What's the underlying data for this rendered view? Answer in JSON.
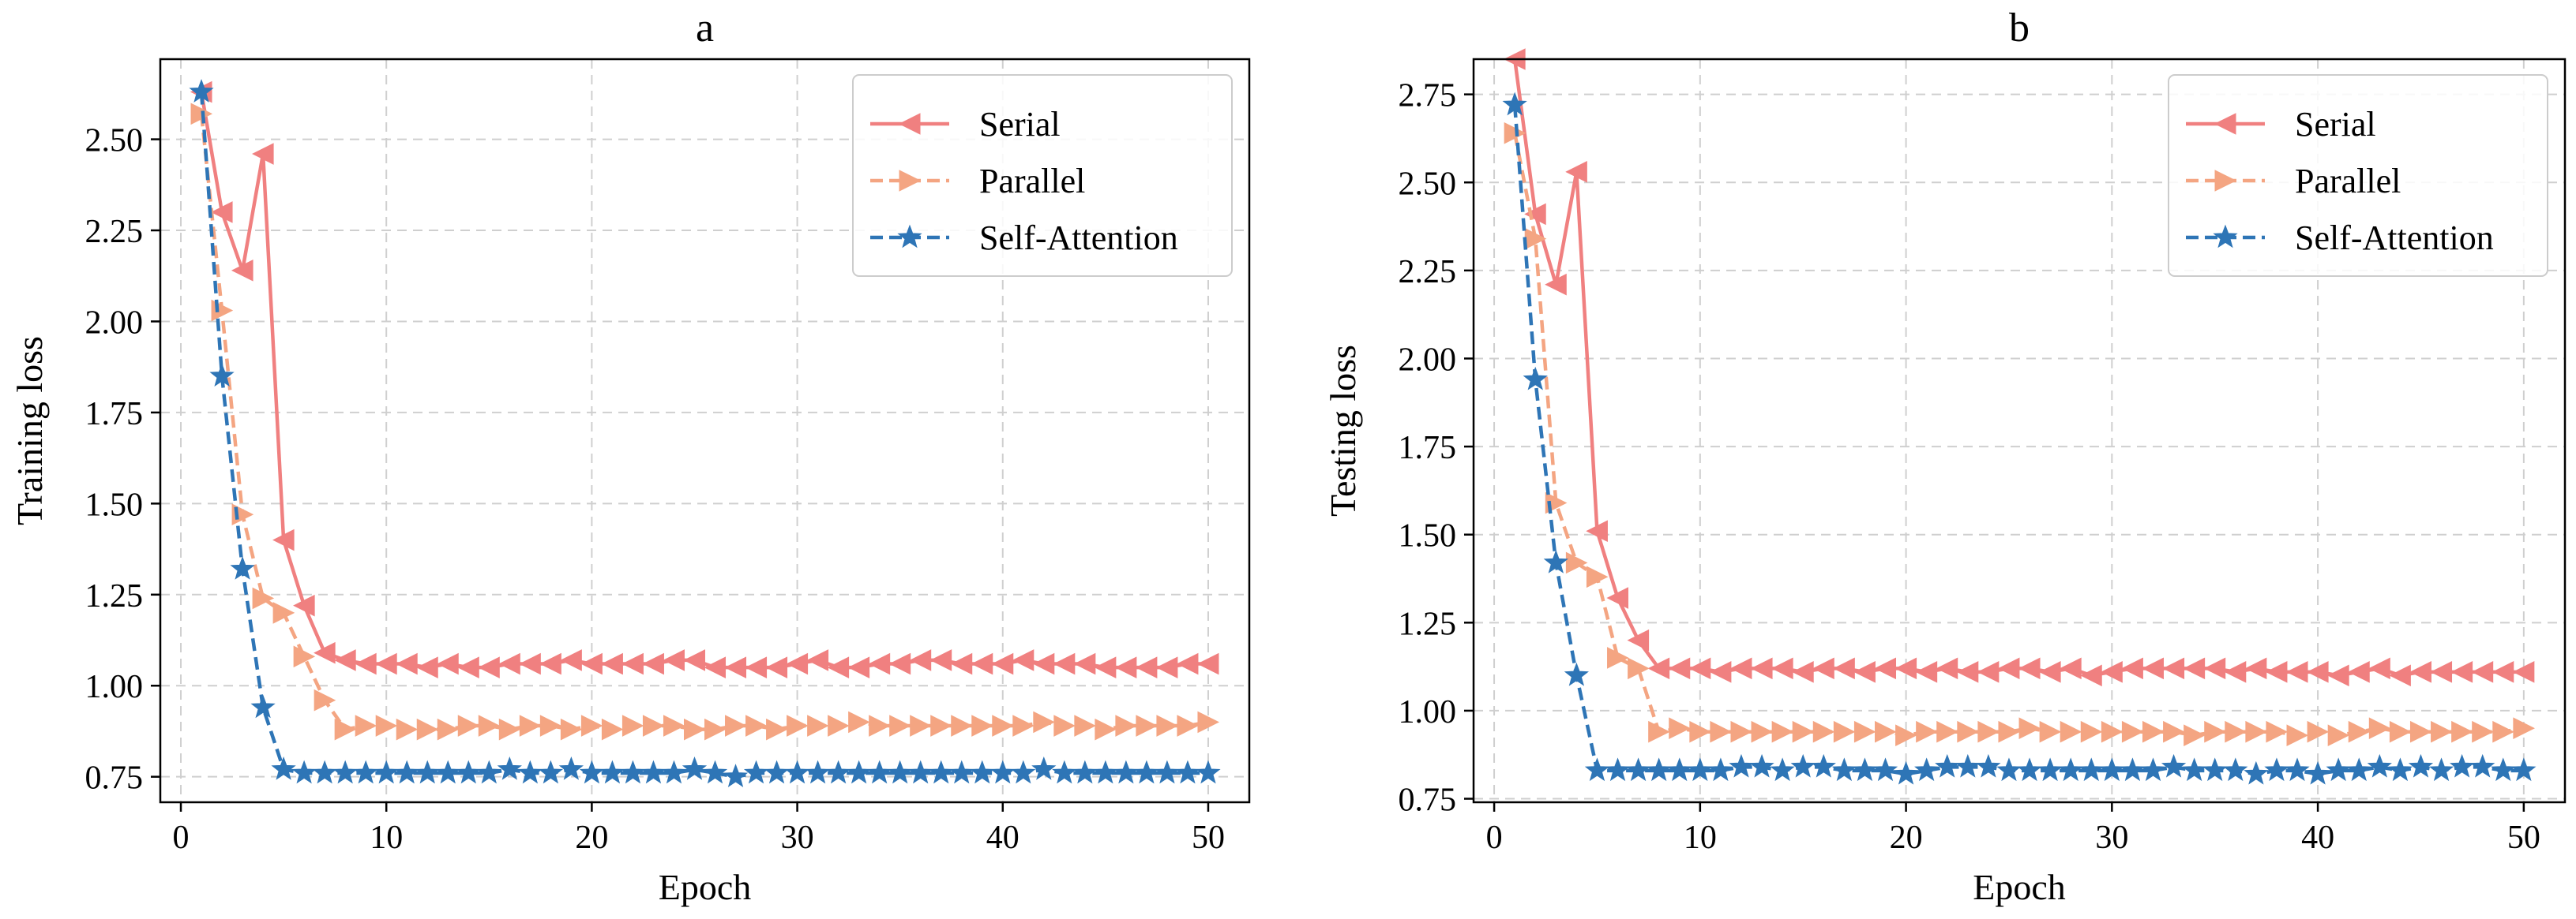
{
  "chart_data": [
    {
      "type": "line",
      "title": "a",
      "xlabel": "Epoch",
      "ylabel": "Training loss",
      "xlim": [
        -1,
        52
      ],
      "ylim": [
        0.68,
        2.72
      ],
      "xticks": [
        0,
        10,
        20,
        30,
        40,
        50
      ],
      "yticks": [
        0.75,
        1.0,
        1.25,
        1.5,
        1.75,
        2.0,
        2.25,
        2.5
      ],
      "grid": true,
      "legend_position": "top-right",
      "x": [
        1,
        2,
        3,
        4,
        5,
        6,
        7,
        8,
        9,
        10,
        11,
        12,
        13,
        14,
        15,
        16,
        17,
        18,
        19,
        20,
        21,
        22,
        23,
        24,
        25,
        26,
        27,
        28,
        29,
        30,
        31,
        32,
        33,
        34,
        35,
        36,
        37,
        38,
        39,
        40,
        41,
        42,
        43,
        44,
        45,
        46,
        47,
        48,
        49,
        50
      ],
      "series": [
        {
          "name": "Serial",
          "color": "#f08080",
          "marker": "triangle-left",
          "dash": "solid",
          "values": [
            2.63,
            2.3,
            2.14,
            2.46,
            1.4,
            1.22,
            1.09,
            1.07,
            1.06,
            1.06,
            1.06,
            1.05,
            1.06,
            1.05,
            1.05,
            1.06,
            1.06,
            1.06,
            1.07,
            1.06,
            1.06,
            1.06,
            1.06,
            1.07,
            1.07,
            1.05,
            1.05,
            1.05,
            1.05,
            1.06,
            1.07,
            1.05,
            1.05,
            1.06,
            1.06,
            1.07,
            1.07,
            1.06,
            1.06,
            1.06,
            1.07,
            1.06,
            1.06,
            1.06,
            1.05,
            1.05,
            1.05,
            1.05,
            1.06,
            1.06
          ]
        },
        {
          "name": "Parallel",
          "color": "#f4a582",
          "marker": "triangle-right",
          "dash": "dashed",
          "values": [
            2.57,
            2.03,
            1.47,
            1.24,
            1.2,
            1.08,
            0.96,
            0.88,
            0.89,
            0.89,
            0.88,
            0.88,
            0.88,
            0.89,
            0.89,
            0.88,
            0.89,
            0.89,
            0.88,
            0.89,
            0.88,
            0.89,
            0.89,
            0.89,
            0.88,
            0.88,
            0.89,
            0.89,
            0.88,
            0.89,
            0.89,
            0.89,
            0.9,
            0.89,
            0.89,
            0.89,
            0.89,
            0.89,
            0.89,
            0.89,
            0.89,
            0.9,
            0.89,
            0.89,
            0.88,
            0.89,
            0.89,
            0.89,
            0.89,
            0.9
          ]
        },
        {
          "name": "Self-Attention",
          "color": "#2e75b6",
          "marker": "star",
          "dash": "dashed",
          "values": [
            2.63,
            1.85,
            1.32,
            0.94,
            0.77,
            0.76,
            0.76,
            0.76,
            0.76,
            0.76,
            0.76,
            0.76,
            0.76,
            0.76,
            0.76,
            0.77,
            0.76,
            0.76,
            0.77,
            0.76,
            0.76,
            0.76,
            0.76,
            0.76,
            0.77,
            0.76,
            0.75,
            0.76,
            0.76,
            0.76,
            0.76,
            0.76,
            0.76,
            0.76,
            0.76,
            0.76,
            0.76,
            0.76,
            0.76,
            0.76,
            0.76,
            0.77,
            0.76,
            0.76,
            0.76,
            0.76,
            0.76,
            0.76,
            0.76,
            0.76
          ]
        }
      ]
    },
    {
      "type": "line",
      "title": "b",
      "xlabel": "Epoch",
      "ylabel": "Testing loss",
      "xlim": [
        -1,
        52
      ],
      "ylim": [
        0.74,
        2.85
      ],
      "xticks": [
        0,
        10,
        20,
        30,
        40,
        50
      ],
      "yticks": [
        0.75,
        1.0,
        1.25,
        1.5,
        1.75,
        2.0,
        2.25,
        2.5,
        2.75
      ],
      "grid": true,
      "legend_position": "top-right",
      "x": [
        1,
        2,
        3,
        4,
        5,
        6,
        7,
        8,
        9,
        10,
        11,
        12,
        13,
        14,
        15,
        16,
        17,
        18,
        19,
        20,
        21,
        22,
        23,
        24,
        25,
        26,
        27,
        28,
        29,
        30,
        31,
        32,
        33,
        34,
        35,
        36,
        37,
        38,
        39,
        40,
        41,
        42,
        43,
        44,
        45,
        46,
        47,
        48,
        49,
        50
      ],
      "series": [
        {
          "name": "Serial",
          "color": "#f08080",
          "marker": "triangle-left",
          "dash": "solid",
          "values": [
            2.85,
            2.41,
            2.21,
            2.53,
            1.51,
            1.32,
            1.2,
            1.12,
            1.12,
            1.12,
            1.11,
            1.12,
            1.12,
            1.12,
            1.11,
            1.12,
            1.12,
            1.11,
            1.12,
            1.12,
            1.11,
            1.12,
            1.11,
            1.11,
            1.12,
            1.12,
            1.11,
            1.12,
            1.1,
            1.11,
            1.12,
            1.12,
            1.12,
            1.12,
            1.12,
            1.11,
            1.12,
            1.11,
            1.11,
            1.11,
            1.1,
            1.11,
            1.12,
            1.1,
            1.11,
            1.11,
            1.11,
            1.11,
            1.11,
            1.11
          ]
        },
        {
          "name": "Parallel",
          "color": "#f4a582",
          "marker": "triangle-right",
          "dash": "dashed",
          "values": [
            2.64,
            2.34,
            1.59,
            1.42,
            1.38,
            1.15,
            1.12,
            0.94,
            0.95,
            0.94,
            0.94,
            0.94,
            0.94,
            0.94,
            0.94,
            0.94,
            0.94,
            0.94,
            0.94,
            0.93,
            0.94,
            0.94,
            0.94,
            0.94,
            0.94,
            0.95,
            0.94,
            0.94,
            0.94,
            0.94,
            0.94,
            0.94,
            0.94,
            0.93,
            0.94,
            0.94,
            0.94,
            0.94,
            0.93,
            0.94,
            0.93,
            0.94,
            0.95,
            0.94,
            0.94,
            0.94,
            0.94,
            0.94,
            0.94,
            0.95
          ]
        },
        {
          "name": "Self-Attention",
          "color": "#2e75b6",
          "marker": "star",
          "dash": "dashed",
          "values": [
            2.72,
            1.94,
            1.42,
            1.1,
            0.83,
            0.83,
            0.83,
            0.83,
            0.83,
            0.83,
            0.83,
            0.84,
            0.84,
            0.83,
            0.84,
            0.84,
            0.83,
            0.83,
            0.83,
            0.82,
            0.83,
            0.84,
            0.84,
            0.84,
            0.83,
            0.83,
            0.83,
            0.83,
            0.83,
            0.83,
            0.83,
            0.83,
            0.84,
            0.83,
            0.83,
            0.83,
            0.82,
            0.83,
            0.83,
            0.82,
            0.83,
            0.83,
            0.84,
            0.83,
            0.84,
            0.83,
            0.84,
            0.84,
            0.83,
            0.83
          ]
        }
      ]
    }
  ]
}
